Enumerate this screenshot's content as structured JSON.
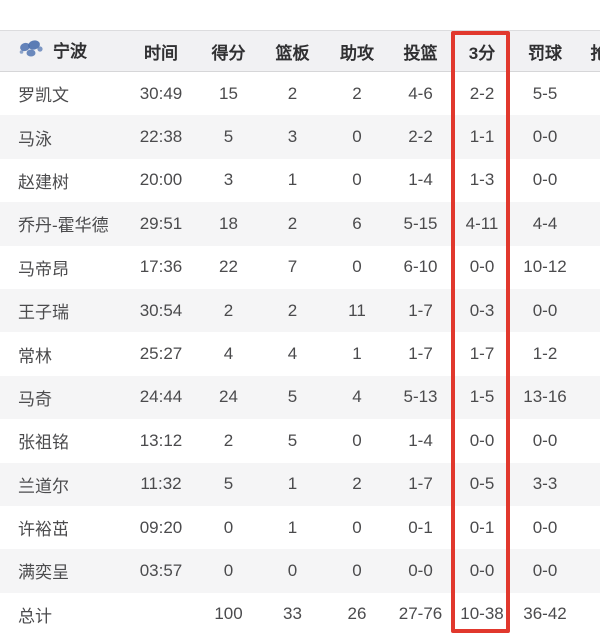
{
  "table": {
    "team_name": "宁波",
    "columns": [
      {
        "key": "player",
        "label": "宁波"
      },
      {
        "key": "time",
        "label": "时间"
      },
      {
        "key": "points",
        "label": "得分"
      },
      {
        "key": "rebounds",
        "label": "篮板"
      },
      {
        "key": "assists",
        "label": "助攻"
      },
      {
        "key": "fg",
        "label": "投篮"
      },
      {
        "key": "three",
        "label": "3分",
        "highlighted": true
      },
      {
        "key": "ft",
        "label": "罚球"
      },
      {
        "key": "steals",
        "label": "抢",
        "cut_off": true
      }
    ],
    "rows": [
      [
        "罗凯文",
        "30:49",
        "15",
        "2",
        "2",
        "4-6",
        "2-2",
        "5-5"
      ],
      [
        "马泳",
        "22:38",
        "5",
        "3",
        "0",
        "2-2",
        "1-1",
        "0-0"
      ],
      [
        "赵建树",
        "20:00",
        "3",
        "1",
        "0",
        "1-4",
        "1-3",
        "0-0"
      ],
      [
        "乔丹-霍华德",
        "29:51",
        "18",
        "2",
        "6",
        "5-15",
        "4-11",
        "4-4"
      ],
      [
        "马帝昂",
        "17:36",
        "22",
        "7",
        "0",
        "6-10",
        "0-0",
        "10-12"
      ],
      [
        "王子瑞",
        "30:54",
        "2",
        "2",
        "11",
        "1-7",
        "0-3",
        "0-0"
      ],
      [
        "常林",
        "25:27",
        "4",
        "4",
        "1",
        "1-7",
        "1-7",
        "1-2"
      ],
      [
        "马奇",
        "24:44",
        "24",
        "5",
        "4",
        "5-13",
        "1-5",
        "13-16"
      ],
      [
        "张祖铭",
        "13:12",
        "2",
        "5",
        "0",
        "1-4",
        "0-0",
        "0-0"
      ],
      [
        "兰道尔",
        "11:32",
        "5",
        "1",
        "2",
        "1-7",
        "0-5",
        "3-3"
      ],
      [
        "许裕茁",
        "09:20",
        "0",
        "1",
        "0",
        "0-1",
        "0-1",
        "0-0"
      ],
      [
        "满奕呈",
        "03:57",
        "0",
        "0",
        "0",
        "0-0",
        "0-0",
        "0-0"
      ]
    ],
    "totals": [
      "总计",
      "",
      "100",
      "33",
      "26",
      "27-76",
      "10-38",
      "36-42"
    ],
    "highlight": {
      "column": "3分",
      "color": "#e1382d"
    },
    "logo_color": "#4a6fae"
  }
}
